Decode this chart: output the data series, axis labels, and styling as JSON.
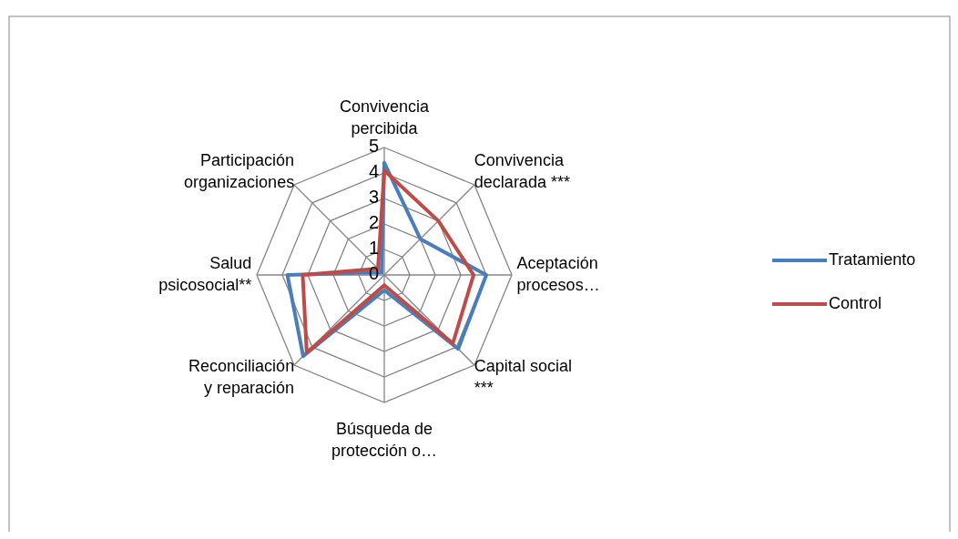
{
  "chart_data": {
    "type": "radar",
    "categories": [
      "Convivencia percibida",
      "Convivencia declarada ***",
      "Aceptación procesos…",
      "Capital social ***",
      "Búsqueda de protección o…",
      "Reconciliación y reparación",
      "Salud psicosocial**",
      "Participación organizaciones"
    ],
    "series": [
      {
        "name": "Tratamiento",
        "color": "#4a7ebb",
        "values": [
          4.4,
          2.0,
          4.0,
          4.1,
          0.6,
          4.5,
          3.8,
          0.15
        ]
      },
      {
        "name": "Control",
        "color": "#be4b48",
        "values": [
          4.1,
          3.0,
          3.5,
          3.8,
          0.4,
          4.3,
          3.2,
          0.35
        ]
      }
    ],
    "ylim": [
      0,
      5
    ],
    "yticks": [
      0,
      1,
      2,
      3,
      4,
      5
    ],
    "grid": true,
    "legend": "right"
  }
}
